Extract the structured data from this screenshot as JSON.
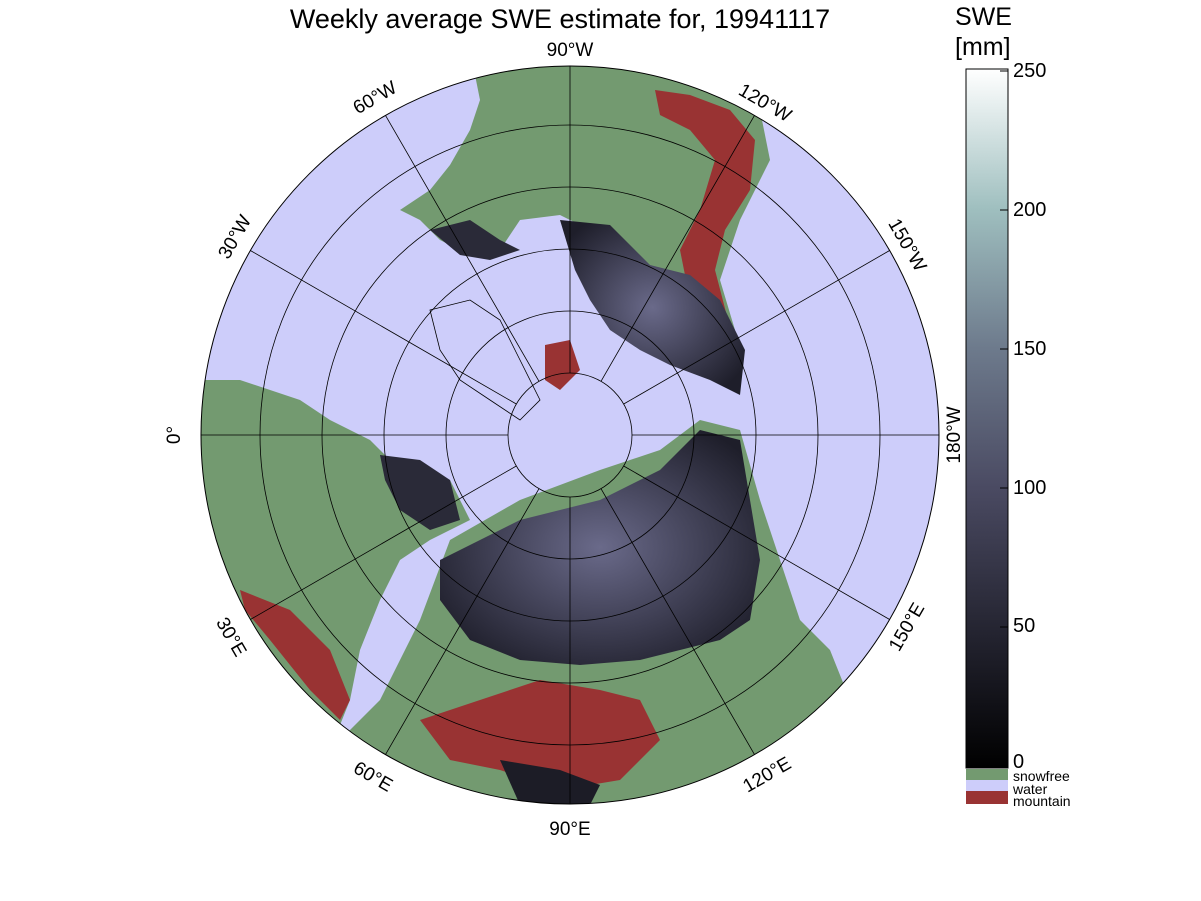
{
  "title": "Weekly average SWE estimate for, 19941117",
  "colorbar": {
    "title_line1": "SWE",
    "title_line2": "[mm]",
    "ticks": [
      "250",
      "200",
      "150",
      "100",
      "50",
      "0"
    ],
    "range": [
      0,
      250
    ],
    "categories": [
      {
        "label": "snowfree",
        "color": "#739a70"
      },
      {
        "label": "water",
        "color": "#cdcdfa"
      },
      {
        "label": "mountain",
        "color": "#993333"
      }
    ]
  },
  "map": {
    "projection": "north-polar stereographic",
    "longitude_labels": [
      {
        "label": "90°W"
      },
      {
        "label": "120°W"
      },
      {
        "label": "150°W"
      },
      {
        "label": "180°W"
      },
      {
        "label": "150°E"
      },
      {
        "label": "120°E"
      },
      {
        "label": "90°E"
      },
      {
        "label": "60°E"
      },
      {
        "label": "30°E"
      },
      {
        "label": "0°"
      },
      {
        "label": "30°W"
      },
      {
        "label": "60°W"
      }
    ],
    "colors": {
      "water": "#cdcdfa",
      "snowfree": "#739a70",
      "mountain": "#993333",
      "snow_low": "#1a1a22",
      "snow_high": "#5a5a7a"
    }
  }
}
